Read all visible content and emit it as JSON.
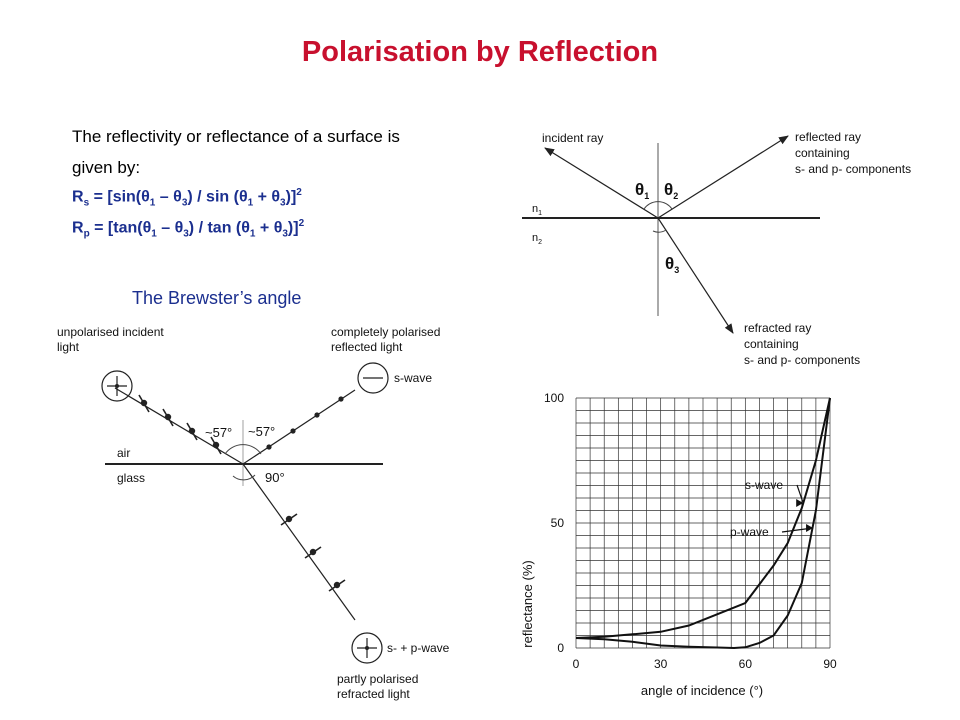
{
  "slide": {
    "title": "Polarisation by Reflection",
    "intro_line1": "The reflectivity or reflectance of a surface is",
    "intro_line2": "given by:",
    "formula_rs": {
      "prefix": "R",
      "sub": "s",
      "text_a": " = [sin(",
      "text_b": " – ",
      "text_c": ") / sin (",
      "text_d": " + ",
      "text_e": ")]",
      "sup": "2"
    },
    "formula_rp": {
      "prefix": "R",
      "sub": "p",
      "text_a": " = [tan(",
      "text_b": " – ",
      "text_c": ") / tan (",
      "text_d": " + ",
      "text_e": ")]",
      "sup": "2"
    },
    "theta": "θ",
    "idx1": "1",
    "idx3": "3",
    "brewster_caption": "The Brewster’s angle"
  },
  "refraction_diagram": {
    "incident": "incident ray",
    "reflected_1": "reflected ray",
    "reflected_2": "containing",
    "reflected_3": "s- and p- components",
    "refracted_1": "refracted ray",
    "refracted_2": "containing",
    "refracted_3": "s- and p- components",
    "n1": "n",
    "n1_sub": "1",
    "n2": "n",
    "n2_sub": "2",
    "theta": "θ",
    "t1": "1",
    "t2": "2",
    "t3": "3"
  },
  "brewster_diagram": {
    "unpolarised_1": "unpolarised incident",
    "unpolarised_2": "light",
    "polarised_1": "completely polarised",
    "polarised_2": "reflected light",
    "s_wave": "s-wave",
    "angle_left": "~57°",
    "angle_right": "~57°",
    "angle_90": "90°",
    "air": "air",
    "glass": "glass",
    "sp_wave": "s- + p-wave",
    "partly_1": "partly polarised",
    "partly_2": "refracted light"
  },
  "chart_data": {
    "type": "line",
    "xlabel": "angle of incidence (°)",
    "ylabel": "reflectance (%)",
    "xlim": [
      0,
      90
    ],
    "ylim": [
      0,
      100
    ],
    "x_ticks": [
      "0",
      "30",
      "60",
      "90"
    ],
    "y_ticks": [
      "0",
      "50",
      "100"
    ],
    "grid": true,
    "series": [
      {
        "name": "s-wave",
        "x": [
          0,
          10,
          20,
          30,
          40,
          50,
          60,
          70,
          75,
          80,
          85,
          90
        ],
        "y": [
          4,
          4.5,
          5.5,
          6.5,
          9,
          13.5,
          18,
          33,
          42,
          56,
          75,
          100
        ]
      },
      {
        "name": "p-wave",
        "x": [
          0,
          10,
          20,
          30,
          40,
          50,
          56,
          60,
          65,
          70,
          75,
          80,
          85,
          90
        ],
        "y": [
          4,
          3.5,
          2.5,
          1,
          0.5,
          0.2,
          0,
          0.3,
          2,
          5,
          13,
          26,
          55,
          100
        ]
      }
    ]
  }
}
